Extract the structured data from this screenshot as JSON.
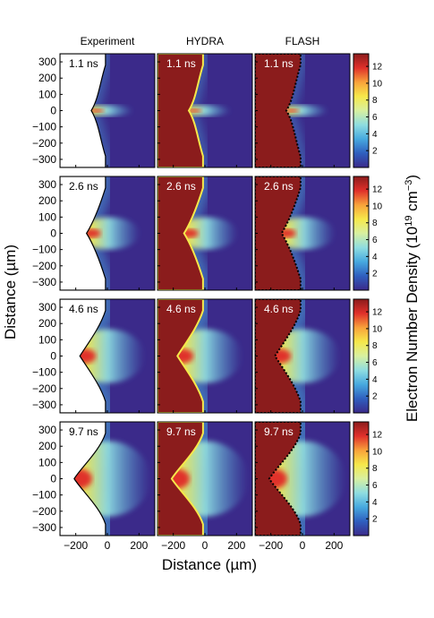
{
  "chart_data": {
    "type": "heatmap",
    "columns": [
      "Experiment",
      "HYDRA",
      "FLASH"
    ],
    "rows": [
      {
        "time": "1.1 ns"
      },
      {
        "time": "2.6 ns"
      },
      {
        "time": "4.6 ns"
      },
      {
        "time": "9.7 ns"
      }
    ],
    "xlabel": "Distance (µm)",
    "ylabel": "Distance (µm)",
    "colorbar_label_parts": [
      "Electron Number Density (10",
      "19",
      " cm",
      "−3",
      ")"
    ],
    "x_ticks": [
      "−200",
      "0",
      "200"
    ],
    "x_values": [
      -200,
      0,
      200
    ],
    "xlim": [
      -300,
      300
    ],
    "y_ticks": [
      "300",
      "200",
      "100",
      "0",
      "−100",
      "−200",
      "−300"
    ],
    "y_values": [
      300,
      200,
      100,
      0,
      -100,
      -200,
      -300
    ],
    "ylim": [
      -350,
      350
    ],
    "colorbar_ticks": [
      "12",
      "10",
      "8",
      "6",
      "4",
      "2"
    ],
    "colorbar_values": [
      12,
      10,
      8,
      6,
      4,
      2
    ],
    "colorbar_range": [
      0,
      13.5
    ],
    "colormap": [
      "#3b2a8a",
      "#2f5fbf",
      "#47a9df",
      "#8fdde0",
      "#d8f0a0",
      "#f6e84a",
      "#f8a23a",
      "#e0302a",
      "#8b1c1c"
    ],
    "target_color": "#8b1c1c"
  }
}
